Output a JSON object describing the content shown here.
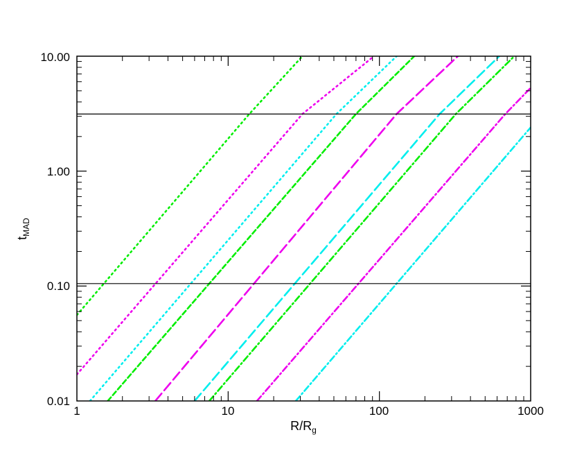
{
  "chart_data": {
    "type": "line",
    "xscale": "log",
    "yscale": "log",
    "xlim": [
      1,
      1000
    ],
    "ylim": [
      0.01,
      10
    ],
    "xlabel": {
      "main": "R/R",
      "sub": "g"
    },
    "ylabel": {
      "main": "t",
      "sub": "MAD"
    },
    "x_tick_labels": [
      {
        "value": 1,
        "label": "1"
      },
      {
        "value": 10,
        "label": "10"
      },
      {
        "value": 100,
        "label": "100"
      },
      {
        "value": 1000,
        "label": "1000"
      }
    ],
    "y_tick_labels": [
      {
        "value": 0.01,
        "label": "0.01"
      },
      {
        "value": 0.1,
        "label": "0.10"
      },
      {
        "value": 1,
        "label": "1.00"
      },
      {
        "value": 10,
        "label": "10.00"
      }
    ],
    "grid": false,
    "hlines": [
      {
        "y": 3.14,
        "color": "#000000"
      },
      {
        "y": 0.105,
        "color": "#000000"
      }
    ],
    "series": [
      {
        "color": "#00ee00",
        "dash": "dotted",
        "points": [
          [
            1,
            0.056
          ],
          [
            13.8,
            3.14
          ],
          [
            31,
            10
          ]
        ]
      },
      {
        "color": "#ee00ee",
        "dash": "dotted",
        "points": [
          [
            1,
            0.017
          ],
          [
            31,
            3.14
          ],
          [
            92,
            10
          ]
        ]
      },
      {
        "color": "#00eeee",
        "dash": "dotted",
        "points": [
          [
            1.22,
            0.01
          ],
          [
            52,
            3.14
          ],
          [
            130,
            10
          ]
        ]
      },
      {
        "color": "#00ee00",
        "dash": "dashed",
        "points": [
          [
            1.6,
            0.01
          ],
          [
            70,
            3.14
          ],
          [
            170,
            10
          ]
        ]
      },
      {
        "color": "#ee00ee",
        "dash": "long-dashed",
        "points": [
          [
            3.3,
            0.01
          ],
          [
            130,
            3.14
          ],
          [
            330,
            10
          ]
        ]
      },
      {
        "color": "#00eeee",
        "dash": "long-dashed",
        "points": [
          [
            6,
            0.01
          ],
          [
            250,
            3.14
          ],
          [
            620,
            10
          ]
        ]
      },
      {
        "color": "#00ee00",
        "dash": "dash-dot",
        "points": [
          [
            7.5,
            0.01
          ],
          [
            320,
            3.14
          ],
          [
            780,
            10
          ]
        ]
      },
      {
        "color": "#ee00ee",
        "dash": "dash-dot",
        "points": [
          [
            15.5,
            0.01
          ],
          [
            680,
            3.14
          ],
          [
            1000,
            5.3
          ]
        ]
      },
      {
        "color": "#00eeee",
        "dash": "dash-dot",
        "points": [
          [
            28,
            0.01
          ],
          [
            1000,
            2.4
          ]
        ]
      }
    ]
  }
}
